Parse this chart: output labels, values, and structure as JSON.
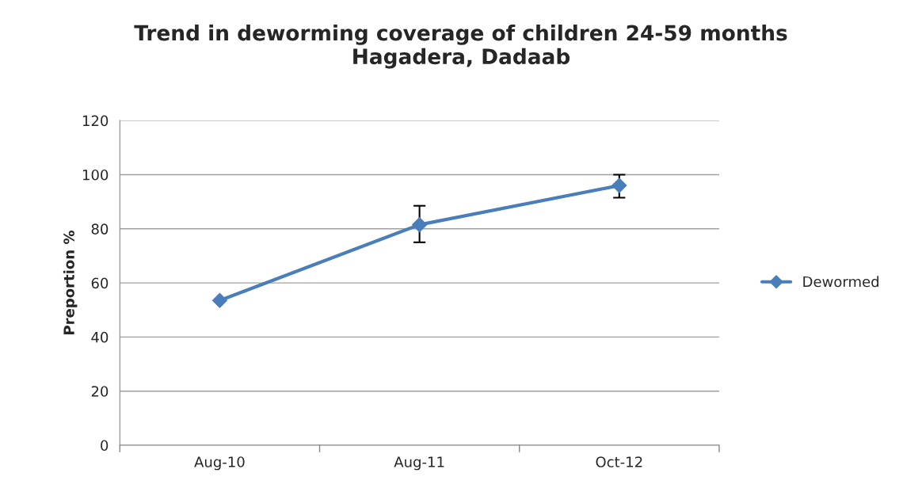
{
  "chart_data": {
    "type": "line",
    "title": "Trend in deworming coverage of children 24-59 months\nHagadera, Dadaab",
    "ylabel": "Preportion %",
    "categories": [
      "Aug-10",
      "Aug-11",
      "Oct-12"
    ],
    "series": [
      {
        "name": "Dewormed",
        "color": "#4a7ebb",
        "values": [
          53.5,
          81.5,
          96
        ],
        "errors": [
          null,
          [
            75,
            88.5
          ],
          [
            91.5,
            100
          ]
        ]
      }
    ],
    "ylim": [
      0,
      120
    ],
    "yticks": [
      0,
      20,
      40,
      60,
      80,
      100,
      120
    ],
    "grid": "y",
    "legend": "right",
    "marker": "diamond",
    "line_style": "solid"
  }
}
